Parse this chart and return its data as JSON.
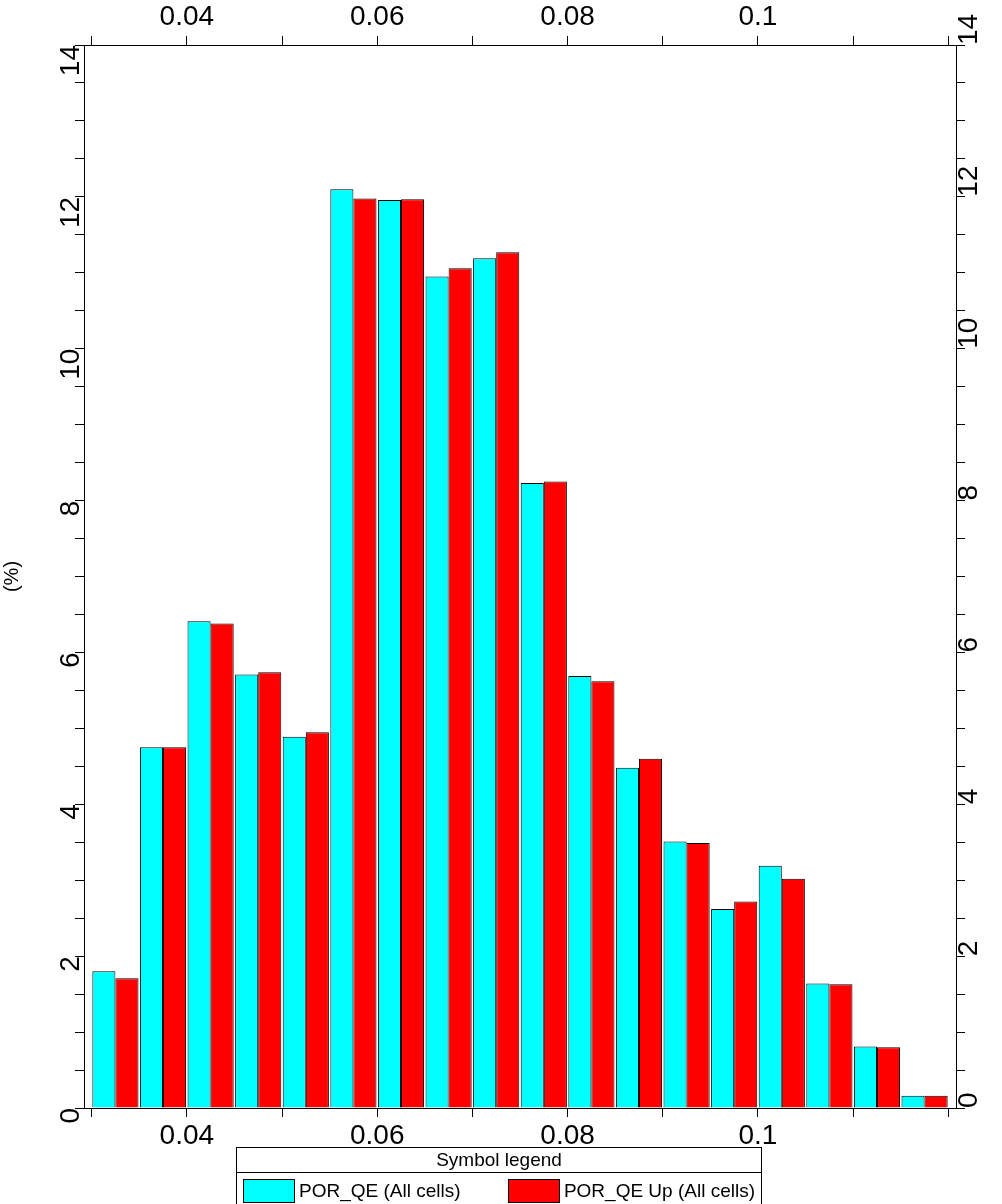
{
  "chart_data": {
    "type": "histogram",
    "ylabel": "(%)",
    "legend_title": "Symbol legend",
    "legend": "bottom",
    "bins": [
      0.03,
      0.035,
      0.04,
      0.045,
      0.05,
      0.055,
      0.06,
      0.065,
      0.07,
      0.075,
      0.08,
      0.085,
      0.09,
      0.095,
      0.1,
      0.105,
      0.11,
      0.115,
      0.12
    ],
    "series": [
      {
        "name": "POR_QE (All cells)",
        "color": "#00ffff",
        "values": [
          1.8,
          4.75,
          6.41,
          5.71,
          4.89,
          12.1,
          11.96,
          10.95,
          11.19,
          8.23,
          5.69,
          4.48,
          3.51,
          2.62,
          3.19,
          1.64,
          0.81,
          0.16
        ]
      },
      {
        "name": "POR_QE Up (All cells)",
        "color": "#ff0000",
        "values": [
          1.71,
          4.75,
          6.38,
          5.74,
          4.95,
          11.98,
          11.97,
          11.06,
          11.27,
          8.25,
          5.62,
          4.6,
          3.49,
          2.72,
          3.02,
          1.63,
          0.8,
          0.16
        ]
      }
    ],
    "xlim": [
      0.0292,
      0.1208
    ],
    "xticks": [
      {
        "value": 0.03,
        "label": null
      },
      0.04,
      {
        "value": 0.05,
        "label": null
      },
      0.06,
      {
        "value": 0.07,
        "label": null
      },
      0.08,
      {
        "value": 0.09,
        "label": null
      },
      0.1,
      {
        "value": 0.11,
        "label": null
      },
      {
        "value": 0.12,
        "label": null
      }
    ],
    "x2lim": [
      0.0292,
      0.1208
    ],
    "x2ticks": [
      {
        "value": 0.03,
        "label": null
      },
      0.04,
      {
        "value": 0.05,
        "label": null
      },
      0.06,
      {
        "value": 0.07,
        "label": null
      },
      0.08,
      {
        "value": 0.09,
        "label": null
      },
      0.1,
      {
        "value": 0.11,
        "label": null
      },
      {
        "value": 0.12,
        "label": null
      }
    ],
    "ylim": [
      0,
      14
    ],
    "yticks": [
      0,
      {
        "value": 0.5,
        "label": null
      },
      {
        "value": 1,
        "label": null
      },
      {
        "value": 1.5,
        "label": null
      },
      2,
      {
        "value": 2.5,
        "label": null
      },
      {
        "value": 3,
        "label": null
      },
      {
        "value": 3.5,
        "label": null
      },
      4,
      {
        "value": 4.5,
        "label": null
      },
      {
        "value": 5,
        "label": null
      },
      {
        "value": 5.5,
        "label": null
      },
      6,
      {
        "value": 6.5,
        "label": null
      },
      {
        "value": 7,
        "label": null
      },
      {
        "value": 7.5,
        "label": null
      },
      8,
      {
        "value": 8.5,
        "label": null
      },
      {
        "value": 9,
        "label": null
      },
      {
        "value": 9.5,
        "label": null
      },
      10,
      {
        "value": 10.5,
        "label": null
      },
      {
        "value": 11,
        "label": null
      },
      {
        "value": 11.5,
        "label": null
      },
      12,
      {
        "value": 12.5,
        "label": null
      },
      {
        "value": 13,
        "label": null
      },
      {
        "value": 13.5,
        "label": null
      },
      14
    ],
    "y2lim": [
      0,
      14
    ],
    "y2ticks": [
      0,
      {
        "value": 0.5,
        "label": null
      },
      {
        "value": 1,
        "label": null
      },
      {
        "value": 1.5,
        "label": null
      },
      2,
      {
        "value": 2.5,
        "label": null
      },
      {
        "value": 3,
        "label": null
      },
      {
        "value": 3.5,
        "label": null
      },
      4,
      {
        "value": 4.5,
        "label": null
      },
      {
        "value": 5,
        "label": null
      },
      {
        "value": 5.5,
        "label": null
      },
      6,
      {
        "value": 6.5,
        "label": null
      },
      {
        "value": 7,
        "label": null
      },
      {
        "value": 7.5,
        "label": null
      },
      8,
      {
        "value": 8.5,
        "label": null
      },
      {
        "value": 9,
        "label": null
      },
      {
        "value": 9.5,
        "label": null
      },
      10,
      {
        "value": 10.5,
        "label": null
      },
      {
        "value": 11,
        "label": null
      },
      {
        "value": 11.5,
        "label": null
      },
      12,
      {
        "value": 12.5,
        "label": null
      },
      {
        "value": 13,
        "label": null
      },
      {
        "value": 13.5,
        "label": null
      },
      14
    ]
  }
}
